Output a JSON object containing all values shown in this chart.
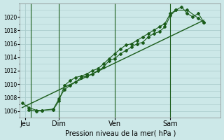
{
  "title": "Pression niveau de la mer( hPa )",
  "bg_color": "#cce8e8",
  "grid_color": "#aacccc",
  "line_color": "#1a5c1a",
  "x_tick_labels": [
    "Jeu",
    "Dim",
    "Ven",
    "Sam"
  ],
  "x_tick_positions": [
    0.5,
    3.5,
    8.5,
    13.5
  ],
  "xlim": [
    0,
    18
  ],
  "ylim": [
    1005.0,
    1022.0
  ],
  "yticks": [
    1006,
    1008,
    1010,
    1012,
    1014,
    1016,
    1018,
    1020
  ],
  "vline_positions": [
    1.0,
    3.5,
    8.5,
    13.5
  ],
  "series1_x": [
    0.2,
    0.8,
    1.5,
    2.0,
    3.0,
    3.5,
    4.0,
    4.5,
    5.0,
    5.5,
    6.0,
    6.5,
    7.0,
    7.5,
    8.0,
    8.5,
    9.0,
    9.5,
    10.0,
    10.5,
    11.0,
    11.5,
    12.0,
    12.5,
    13.0,
    13.5,
    14.0,
    14.5,
    15.0,
    15.5,
    16.0,
    16.5
  ],
  "series1_y": [
    1007.2,
    1006.5,
    1006.1,
    1006.1,
    1006.3,
    1007.8,
    1009.2,
    1009.8,
    1010.3,
    1011.0,
    1011.2,
    1011.5,
    1012.0,
    1012.5,
    1013.5,
    1013.8,
    1014.5,
    1015.0,
    1015.5,
    1016.0,
    1016.2,
    1017.0,
    1017.5,
    1017.8,
    1018.5,
    1020.2,
    1021.0,
    1021.5,
    1020.5,
    1020.0,
    1020.5,
    1019.2
  ],
  "series2_x": [
    0.8,
    1.5,
    2.0,
    3.0,
    3.5,
    4.0,
    4.5,
    5.0,
    5.5,
    6.0,
    6.5,
    7.0,
    7.5,
    8.0,
    8.5,
    9.0,
    9.5,
    10.0,
    10.5,
    11.0,
    11.5,
    12.0,
    12.5,
    13.0,
    13.5,
    14.0,
    15.0,
    16.0,
    16.5
  ],
  "series2_y": [
    1006.2,
    1006.0,
    1006.1,
    1006.2,
    1007.5,
    1009.8,
    1010.5,
    1011.0,
    1011.2,
    1011.5,
    1012.0,
    1012.3,
    1013.0,
    1013.8,
    1014.5,
    1015.2,
    1015.8,
    1016.0,
    1016.5,
    1017.0,
    1017.5,
    1018.0,
    1018.5,
    1019.0,
    1020.5,
    1021.0,
    1021.0,
    1019.8,
    1019.2
  ],
  "trend_x": [
    0.2,
    16.5
  ],
  "trend_y": [
    1006.5,
    1019.5
  ],
  "ylabel_fontsize": 5.5,
  "xlabel_fontsize": 7.0,
  "tick_labelsize": 5.5
}
